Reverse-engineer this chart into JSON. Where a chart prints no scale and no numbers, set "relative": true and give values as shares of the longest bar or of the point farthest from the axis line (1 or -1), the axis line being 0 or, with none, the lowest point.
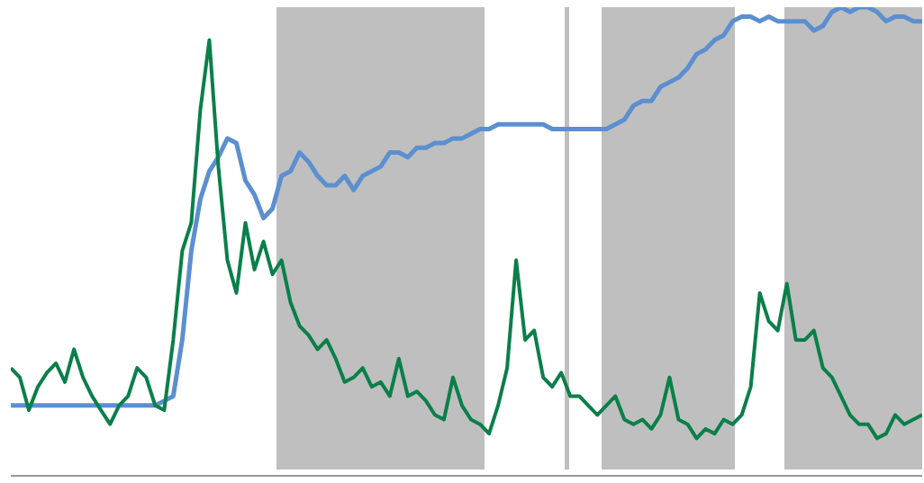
{
  "chart_data": {
    "type": "line",
    "relative": true,
    "categories": [
      null,
      null,
      null,
      null,
      null,
      null,
      null,
      null,
      null,
      null,
      null,
      null,
      null,
      null,
      null,
      null,
      null,
      null,
      null,
      null,
      null,
      null,
      null,
      null,
      null,
      null,
      null,
      null,
      null,
      null,
      null,
      null,
      null,
      null,
      null,
      null,
      null,
      null,
      null,
      null,
      null,
      null,
      null,
      null,
      null,
      null,
      null,
      null,
      null,
      null,
      null,
      null,
      null,
      null,
      null,
      null,
      null,
      null,
      null,
      null,
      null,
      null,
      null,
      null,
      null,
      null,
      null,
      null,
      null,
      null,
      null,
      null,
      null,
      null,
      null,
      null,
      null,
      null,
      null,
      null,
      null,
      null,
      null,
      null,
      null,
      null,
      null,
      null,
      null,
      null,
      null,
      null,
      null,
      null,
      null,
      null,
      null,
      null,
      null,
      null,
      null,
      null
    ],
    "series": [
      {
        "color": "#5b8fd0",
        "values": [
          0.15,
          0.15,
          0.15,
          0.15,
          0.15,
          0.15,
          0.15,
          0.15,
          0.15,
          0.15,
          0.15,
          0.15,
          0.15,
          0.15,
          0.15,
          0.15,
          0.15,
          0.16,
          0.17,
          0.29,
          0.48,
          0.59,
          0.65,
          0.68,
          0.72,
          0.71,
          0.63,
          0.6,
          0.55,
          0.57,
          0.64,
          0.65,
          0.69,
          0.67,
          0.64,
          0.62,
          0.62,
          0.64,
          0.61,
          0.64,
          0.65,
          0.66,
          0.69,
          0.69,
          0.68,
          0.7,
          0.7,
          0.71,
          0.71,
          0.72,
          0.72,
          0.73,
          0.74,
          0.74,
          0.75,
          0.75,
          0.75,
          0.75,
          0.75,
          0.75,
          0.74,
          0.74,
          0.74,
          0.74,
          0.74,
          0.74,
          0.74,
          0.75,
          0.76,
          0.79,
          0.8,
          0.8,
          0.83,
          0.84,
          0.85,
          0.87,
          0.9,
          0.91,
          0.93,
          0.94,
          0.97,
          0.98,
          0.98,
          0.97,
          0.98,
          0.97,
          0.97,
          0.97,
          0.97,
          0.95,
          0.96,
          0.99,
          1,
          0.99,
          1,
          1,
          0.99,
          0.97,
          0.98,
          0.98,
          0.97,
          0.97
        ]
      },
      {
        "color": "#0a7f4a",
        "values": [
          0.23,
          0.21,
          0.14,
          0.19,
          0.22,
          0.24,
          0.2,
          0.27,
          0.21,
          0.17,
          0.14,
          0.11,
          0.15,
          0.17,
          0.23,
          0.21,
          0.15,
          0.14,
          0.29,
          0.48,
          0.54,
          0.78,
          0.93,
          0.66,
          0.46,
          0.39,
          0.54,
          0.44,
          0.5,
          0.43,
          0.46,
          0.37,
          0.32,
          0.3,
          0.27,
          0.29,
          0.25,
          0.2,
          0.21,
          0.23,
          0.19,
          0.2,
          0.17,
          0.25,
          0.17,
          0.18,
          0.16,
          0.13,
          0.12,
          0.21,
          0.15,
          0.12,
          0.11,
          0.09,
          0.15,
          0.23,
          0.46,
          0.29,
          0.31,
          0.21,
          0.19,
          0.22,
          0.17,
          0.17,
          0.15,
          0.13,
          0.15,
          0.17,
          0.12,
          0.11,
          0.12,
          0.1,
          0.13,
          0.21,
          0.12,
          0.11,
          0.08,
          0.1,
          0.09,
          0.12,
          0.11,
          0.13,
          0.19,
          0.39,
          0.33,
          0.31,
          0.41,
          0.29,
          0.29,
          0.31,
          0.23,
          0.21,
          0.17,
          0.13,
          0.11,
          0.11,
          0.08,
          0.09,
          0.13,
          0.11,
          0.12,
          0.13
        ]
      }
    ]
  }
}
